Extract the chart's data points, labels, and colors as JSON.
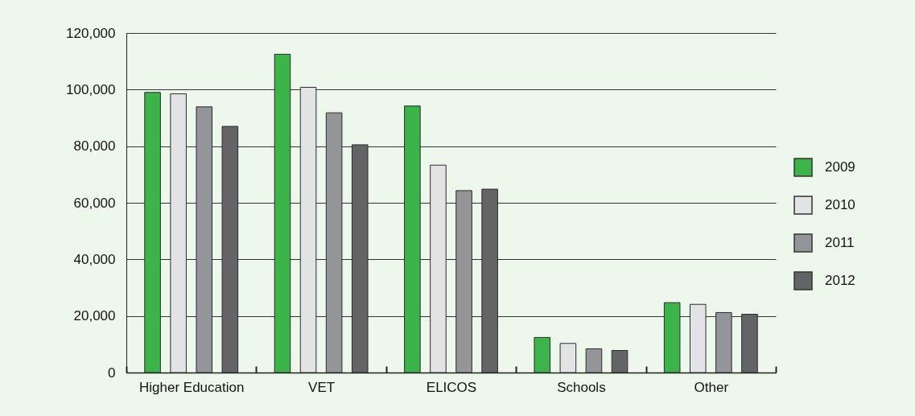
{
  "chart_data": {
    "type": "bar",
    "categories": [
      "Higher Education",
      "VET",
      "ELICOS",
      "Schools",
      "Other"
    ],
    "series": [
      {
        "name": "2009",
        "color": "#3bb54a",
        "values": [
          99000,
          112500,
          94200,
          12400,
          24700
        ]
      },
      {
        "name": "2010",
        "color": "#e2e3e5",
        "values": [
          98500,
          100800,
          73300,
          10300,
          24100
        ]
      },
      {
        "name": "2011",
        "color": "#939598",
        "values": [
          93900,
          91800,
          64300,
          8400,
          21200
        ]
      },
      {
        "name": "2012",
        "color": "#636466",
        "values": [
          87000,
          80500,
          64800,
          7800,
          20600
        ]
      }
    ],
    "ylim": [
      0,
      120000
    ],
    "yticks": [
      {
        "value": 0,
        "label": "0"
      },
      {
        "value": 20000,
        "label": "20,000"
      },
      {
        "value": 40000,
        "label": "40,000"
      },
      {
        "value": 60000,
        "label": "60,000"
      },
      {
        "value": 80000,
        "label": "80,000"
      },
      {
        "value": 100000,
        "label": "100,000"
      },
      {
        "value": 120000,
        "label": "120,000"
      }
    ],
    "grid": "y",
    "legend": "right"
  }
}
